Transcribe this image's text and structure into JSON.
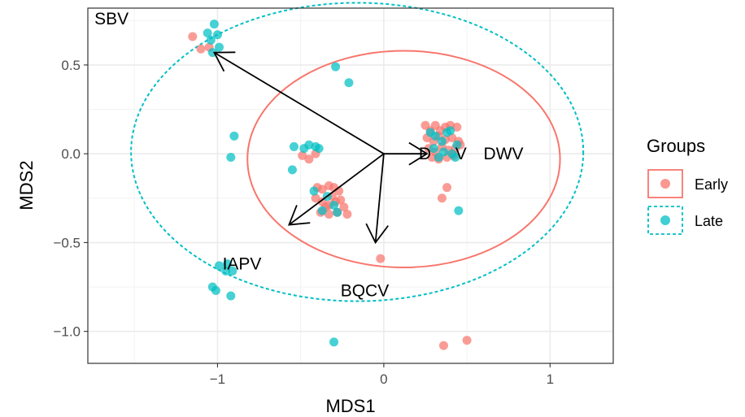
{
  "chart_data": {
    "type": "scatter",
    "xlabel": "MDS1",
    "ylabel": "MDS2",
    "xlim": [
      -1.78,
      1.38
    ],
    "ylim": [
      -1.18,
      0.82
    ],
    "x_ticks": [
      -1,
      0,
      1
    ],
    "x_tick_labels": [
      "−1",
      "0",
      "1"
    ],
    "y_ticks": [
      -1.0,
      -0.5,
      0.0,
      0.5
    ],
    "y_tick_labels": [
      "−1.0",
      "−0.5",
      "0.0",
      "0.5"
    ],
    "grid": true,
    "legend": {
      "title": "Groups",
      "position": "right",
      "entries": [
        {
          "label": "Early",
          "color": "#F8766D",
          "ellipse_style": "solid"
        },
        {
          "label": "Late",
          "color": "#00BFC4",
          "ellipse_style": "dashed"
        }
      ]
    },
    "series": [
      {
        "name": "Early",
        "color": "#F8766D",
        "points": [
          [
            -1.15,
            0.66
          ],
          [
            -1.1,
            0.59
          ],
          [
            -1.05,
            0.6
          ],
          [
            -0.49,
            -0.01
          ],
          [
            -0.45,
            -0.03
          ],
          [
            -0.41,
            0.0
          ],
          [
            -0.4,
            -0.19
          ],
          [
            -0.37,
            -0.2
          ],
          [
            -0.33,
            -0.18
          ],
          [
            -0.3,
            -0.19
          ],
          [
            -0.27,
            -0.21
          ],
          [
            -0.41,
            -0.25
          ],
          [
            -0.37,
            -0.27
          ],
          [
            -0.33,
            -0.29
          ],
          [
            -0.29,
            -0.27
          ],
          [
            -0.26,
            -0.26
          ],
          [
            -0.38,
            -0.33
          ],
          [
            -0.33,
            -0.34
          ],
          [
            -0.28,
            -0.33
          ],
          [
            -0.24,
            -0.3
          ],
          [
            -0.22,
            -0.34
          ],
          [
            -0.35,
            -0.3
          ],
          [
            -0.31,
            -0.24
          ],
          [
            0.25,
            0.16
          ],
          [
            0.28,
            0.13
          ],
          [
            0.31,
            0.16
          ],
          [
            0.34,
            0.13
          ],
          [
            0.37,
            0.15
          ],
          [
            0.4,
            0.16
          ],
          [
            0.44,
            0.15
          ],
          [
            0.26,
            0.09
          ],
          [
            0.3,
            0.07
          ],
          [
            0.33,
            0.1
          ],
          [
            0.37,
            0.08
          ],
          [
            0.41,
            0.09
          ],
          [
            0.45,
            0.07
          ],
          [
            0.27,
            0.03
          ],
          [
            0.31,
            0.01
          ],
          [
            0.35,
            0.04
          ],
          [
            0.39,
            0.02
          ],
          [
            0.43,
            0.03
          ],
          [
            0.46,
            0.05
          ],
          [
            0.29,
            -0.02
          ],
          [
            0.33,
            -0.03
          ],
          [
            0.38,
            -0.02
          ],
          [
            0.42,
            -0.01
          ],
          [
            0.38,
            -0.19
          ],
          [
            0.35,
            -0.25
          ],
          [
            -0.02,
            -0.59
          ],
          [
            0.36,
            -1.08
          ],
          [
            0.5,
            -1.05
          ]
        ]
      },
      {
        "name": "Late",
        "color": "#00BFC4",
        "points": [
          [
            -1.02,
            0.73
          ],
          [
            -1.06,
            0.68
          ],
          [
            -1.0,
            0.67
          ],
          [
            -1.04,
            0.64
          ],
          [
            -0.99,
            0.6
          ],
          [
            -1.03,
            0.57
          ],
          [
            -0.29,
            0.49
          ],
          [
            -0.21,
            0.4
          ],
          [
            -0.9,
            0.1
          ],
          [
            -0.92,
            -0.02
          ],
          [
            -0.54,
            0.04
          ],
          [
            -0.48,
            0.03
          ],
          [
            -0.45,
            0.05
          ],
          [
            -0.41,
            0.04
          ],
          [
            -0.39,
            0.03
          ],
          [
            -0.55,
            -0.09
          ],
          [
            -0.42,
            -0.21
          ],
          [
            -0.34,
            -0.24
          ],
          [
            -0.3,
            -0.29
          ],
          [
            -0.37,
            -0.32
          ],
          [
            -0.28,
            -0.33
          ],
          [
            0.31,
            0.1
          ],
          [
            0.35,
            0.07
          ],
          [
            0.4,
            0.13
          ],
          [
            0.36,
            0.01
          ],
          [
            0.3,
            0.03
          ],
          [
            0.44,
            0.05
          ],
          [
            0.33,
            -0.02
          ],
          [
            0.41,
            0.0
          ],
          [
            0.38,
            0.12
          ],
          [
            0.28,
            0.12
          ],
          [
            0.43,
            -0.02
          ],
          [
            0.45,
            -0.32
          ],
          [
            -0.99,
            -0.63
          ],
          [
            -0.94,
            -0.62
          ],
          [
            -0.95,
            -0.66
          ],
          [
            -0.91,
            -0.66
          ],
          [
            -1.03,
            -0.75
          ],
          [
            -1.01,
            -0.77
          ],
          [
            -0.92,
            -0.8
          ],
          [
            -0.3,
            -1.06
          ]
        ]
      }
    ],
    "ellipses": [
      {
        "group": "Early",
        "color": "#F8766D",
        "style": "solid",
        "cx": 0.12,
        "cy": -0.03,
        "rx": 0.94,
        "ry": 0.61
      },
      {
        "group": "Late",
        "color": "#00BFC4",
        "style": "dashed",
        "cx": -0.16,
        "cy": 0.01,
        "rx": 1.36,
        "ry": 0.84
      }
    ],
    "arrows": [
      {
        "label": "SBV",
        "x0": 0.0,
        "y0": 0.0,
        "x1": -1.02,
        "y1": 0.57
      },
      {
        "label": "DWV",
        "x0": 0.0,
        "y0": 0.0,
        "x1": 0.26,
        "y1": 0.0
      },
      {
        "label": "IAPV",
        "x0": 0.0,
        "y0": 0.0,
        "x1": -0.57,
        "y1": -0.4
      },
      {
        "label": "BQCV",
        "x0": 0.0,
        "y0": 0.0,
        "x1": -0.05,
        "y1": -0.5
      }
    ],
    "arrow_labels": [
      {
        "text": "SBV",
        "x": -1.74,
        "y": 0.76
      },
      {
        "text": "DWV",
        "x": 0.6,
        "y": 0.0
      },
      {
        "text": "IAPV",
        "x": -0.97,
        "y": -0.62
      },
      {
        "text": "BQCV",
        "x": -0.26,
        "y": -0.77
      },
      {
        "text": "D",
        "x": 0.21,
        "y": 0.0
      },
      {
        "text": "V",
        "x": 0.43,
        "y": 0.0
      }
    ]
  }
}
